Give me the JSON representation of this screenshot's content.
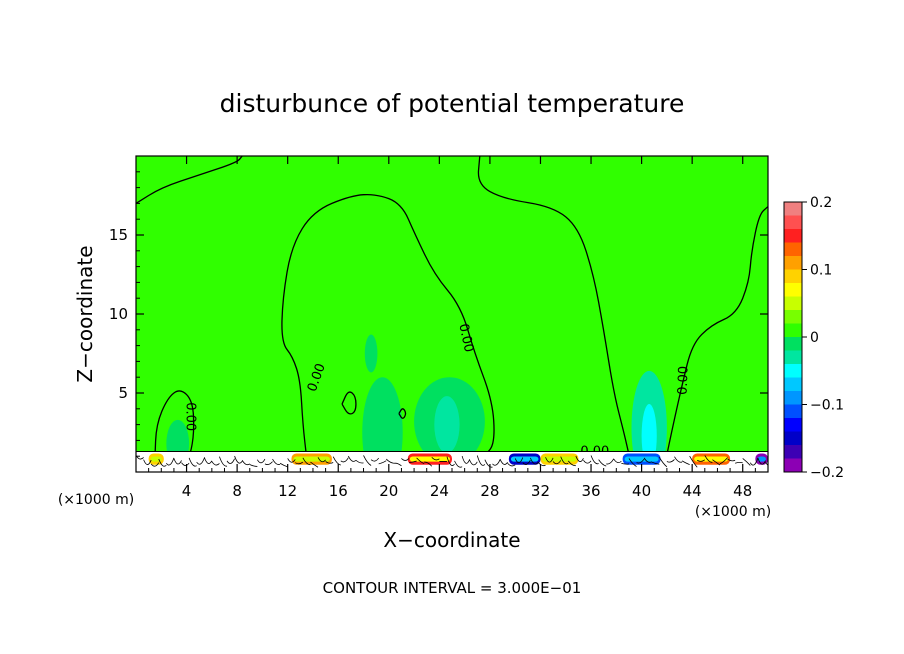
{
  "chart_data": {
    "type": "heatmap",
    "title": "disturbunce of potential temperature",
    "xlabel": "X−coordinate",
    "ylabel": "Z−coordinate",
    "x_unit_left": "(×1000 m)",
    "x_unit_right": "(×1000 m)",
    "footer": "CONTOUR INTERVAL = 3.000E−01",
    "xlim": [
      0,
      50
    ],
    "ylim": [
      0,
      20
    ],
    "x_ticks": [
      4,
      8,
      12,
      16,
      20,
      24,
      28,
      32,
      36,
      40,
      44,
      48
    ],
    "y_ticks": [
      5,
      10,
      15
    ],
    "colorbar": {
      "range": [
        -0.2,
        0.2
      ],
      "tick_labels": [
        "0.2",
        "0.1",
        "0",
        "−0.1",
        "−0.2"
      ],
      "tick_values": [
        0.2,
        0.1,
        0,
        -0.1,
        -0.2
      ],
      "colors": [
        "#f08080",
        "#ff5050",
        "#ff2020",
        "#ff6400",
        "#ffa000",
        "#ffd200",
        "#ffff00",
        "#c8ff00",
        "#78ff00",
        "#30ff00",
        "#00e060",
        "#00e6a0",
        "#00ffff",
        "#00c8ff",
        "#0096ff",
        "#0050ff",
        "#0000ff",
        "#0000c8",
        "#3c00b4",
        "#8c00b4"
      ]
    },
    "background_value": 0.0,
    "contour_label": "0.00",
    "contour_zero": [
      [
        [
          0,
          17
        ],
        [
          2,
          18
        ],
        [
          5,
          18.8
        ],
        [
          8,
          19.6
        ],
        [
          8.4,
          20
        ]
      ],
      [
        [
          1.5,
          0.9
        ],
        [
          1.6,
          3
        ],
        [
          2.5,
          4.7
        ],
        [
          3.5,
          5.3
        ],
        [
          4.5,
          4.5
        ],
        [
          4.6,
          2.5
        ],
        [
          4.3,
          1.1
        ],
        [
          4,
          0.9
        ]
      ],
      [
        [
          13.5,
          0.9
        ],
        [
          13.2,
          3
        ],
        [
          13,
          5.8
        ],
        [
          12.4,
          7.3
        ],
        [
          11.5,
          8.2
        ],
        [
          11.6,
          11
        ],
        [
          12.3,
          14.3
        ],
        [
          14,
          16.5
        ],
        [
          17,
          17.5
        ],
        [
          19,
          17.6
        ],
        [
          21,
          17
        ],
        [
          22.1,
          15
        ],
        [
          23.6,
          12.5
        ],
        [
          25.7,
          10.5
        ],
        [
          26.8,
          7.5
        ],
        [
          28.2,
          4.5
        ],
        [
          28.4,
          2
        ],
        [
          27.8,
          1.1
        ],
        [
          26.5,
          1
        ]
      ],
      [
        [
          27.2,
          20
        ],
        [
          27,
          18.2
        ],
        [
          29,
          17.3
        ],
        [
          33,
          16.8
        ],
        [
          35,
          15.5
        ],
        [
          36.2,
          12.5
        ],
        [
          37,
          9
        ],
        [
          37.8,
          5
        ],
        [
          38.6,
          2.5
        ],
        [
          39,
          1.1
        ]
      ],
      [
        [
          42,
          1.1
        ],
        [
          42.5,
          3
        ],
        [
          43.2,
          5.5
        ],
        [
          44,
          8.1
        ],
        [
          45.5,
          9.3
        ],
        [
          47.5,
          10
        ],
        [
          48.5,
          12
        ],
        [
          48.7,
          14
        ],
        [
          49.3,
          16.3
        ],
        [
          50,
          16.8
        ]
      ],
      [
        [
          33,
          1.1
        ],
        [
          35,
          1.1
        ],
        [
          37,
          1.05
        ],
        [
          38.5,
          1.1
        ]
      ],
      [
        [
          16.3,
          4.3
        ],
        [
          16.8,
          5.2
        ],
        [
          17.4,
          4.8
        ],
        [
          17.4,
          3.8
        ],
        [
          16.8,
          3.6
        ],
        [
          16.3,
          4.3
        ]
      ],
      [
        [
          20.8,
          3.7
        ],
        [
          21.1,
          4.1
        ],
        [
          21.4,
          3.7
        ],
        [
          21.1,
          3.3
        ],
        [
          20.8,
          3.7
        ]
      ]
    ],
    "contour_label_positions": [
      {
        "x": 4.4,
        "y": 3.5,
        "angle": 90
      },
      {
        "x": 14.2,
        "y": 6.0,
        "angle": -70
      },
      {
        "x": 26.2,
        "y": 8.5,
        "angle": 78
      },
      {
        "x": 43.2,
        "y": 5.8,
        "angle": -88
      },
      {
        "x": 36.3,
        "y": 1.35,
        "angle": 0
      }
    ],
    "negative_regions": [
      {
        "x": 19.5,
        "y": 2.5,
        "rx": 1.6,
        "ry": 3.5,
        "value": -0.02
      },
      {
        "x": 24.8,
        "y": 3.2,
        "rx": 2.8,
        "ry": 2.8,
        "value": -0.02
      },
      {
        "x": 24.6,
        "y": 3.0,
        "rx": 1.0,
        "ry": 1.8,
        "value": -0.03
      },
      {
        "x": 40.6,
        "y": 2.8,
        "rx": 1.4,
        "ry": 3.6,
        "value": -0.03
      },
      {
        "x": 40.6,
        "y": 2.3,
        "rx": 0.6,
        "ry": 2.0,
        "value": -0.05
      },
      {
        "x": 3.3,
        "y": 1.8,
        "rx": 0.9,
        "ry": 1.5,
        "value": -0.02
      },
      {
        "x": 18.6,
        "y": 7.5,
        "rx": 0.5,
        "ry": 1.2,
        "value": -0.01
      }
    ],
    "positive_regions": [
      {
        "x": 14.2,
        "y": 2.2,
        "rx": 0.6,
        "ry": 1.0,
        "value": 0.01
      },
      {
        "x": 30.0,
        "y": 5.8,
        "rx": 0.3,
        "ry": 0.5,
        "value": 0.01
      }
    ],
    "surface_layer_top": 1.3,
    "surface_anomalies": [
      {
        "x0": 1.0,
        "x1": 2.2,
        "value": 0.1
      },
      {
        "x0": 12.3,
        "x1": 15.5,
        "value": 0.12
      },
      {
        "x0": 21.5,
        "x1": 25.0,
        "value": 0.15
      },
      {
        "x0": 29.5,
        "x1": 32.0,
        "value": -0.15
      },
      {
        "x0": 32.0,
        "x1": 35.0,
        "value": 0.1
      },
      {
        "x0": 38.5,
        "x1": 41.5,
        "value": -0.12
      },
      {
        "x0": 44.0,
        "x1": 47.0,
        "value": 0.13
      },
      {
        "x0": 49.0,
        "x1": 50.0,
        "value": -0.18
      }
    ]
  }
}
